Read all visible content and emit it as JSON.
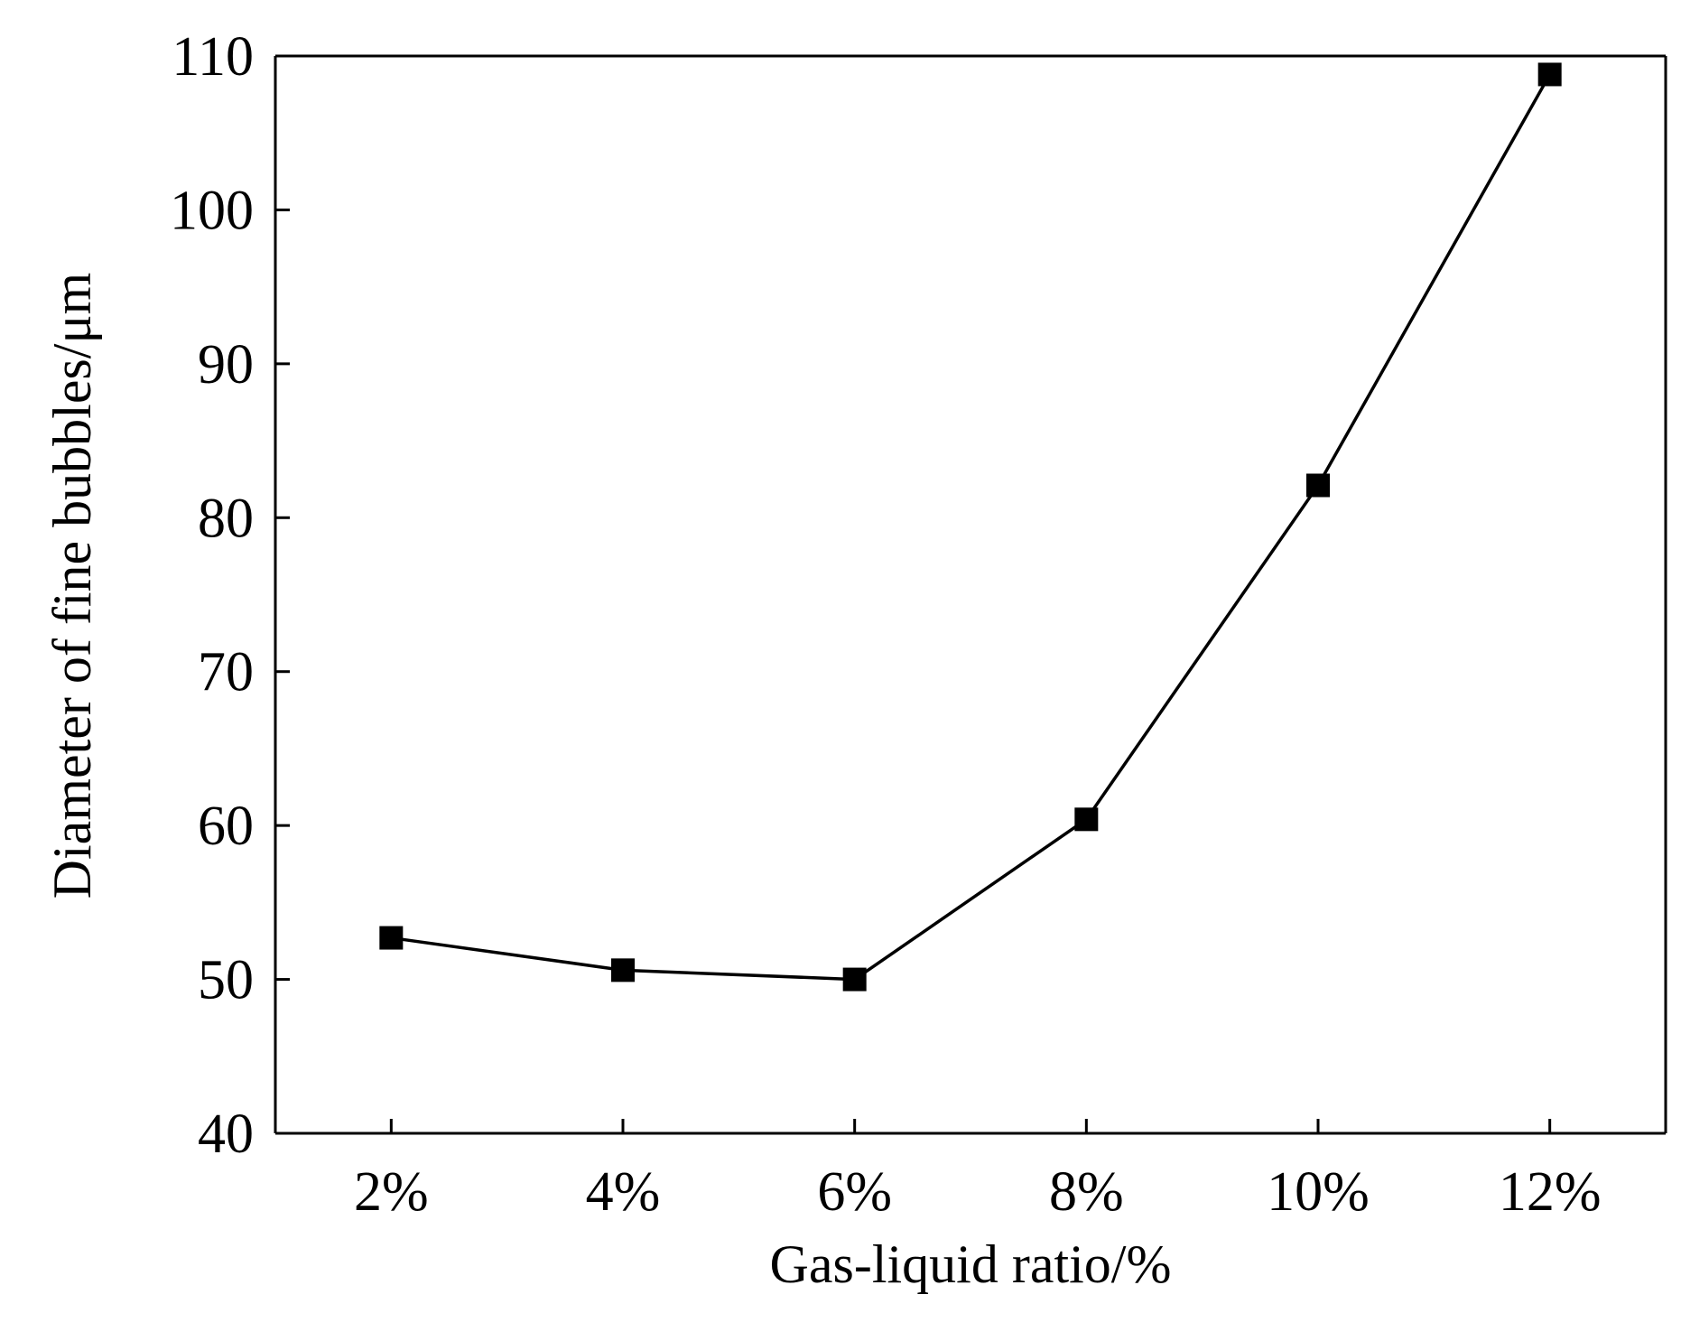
{
  "chart_data": {
    "type": "line",
    "title": "",
    "xlabel": "Gas-liquid ratio/%",
    "ylabel": "Diameter of fine bubbles/μm",
    "categories": [
      "2%",
      "4%",
      "6%",
      "8%",
      "10%",
      "12%"
    ],
    "x": [
      2,
      4,
      6,
      8,
      10,
      12
    ],
    "series": [
      {
        "values": [
          52.7,
          50.6,
          50.0,
          60.4,
          82.1,
          108.8
        ]
      }
    ],
    "xlim": [
      1,
      13
    ],
    "ylim": [
      40,
      110
    ],
    "yticks": [
      40,
      50,
      60,
      70,
      80,
      90,
      100,
      110
    ],
    "ytick_labels": [
      "40",
      "50",
      "60",
      "70",
      "80",
      "90",
      "100",
      "110"
    ],
    "grid": false,
    "legend": "none",
    "marker": "square",
    "colors": {
      "line": "#000000",
      "marker": "#000000",
      "axes": "#000000",
      "background": "#ffffff"
    }
  }
}
